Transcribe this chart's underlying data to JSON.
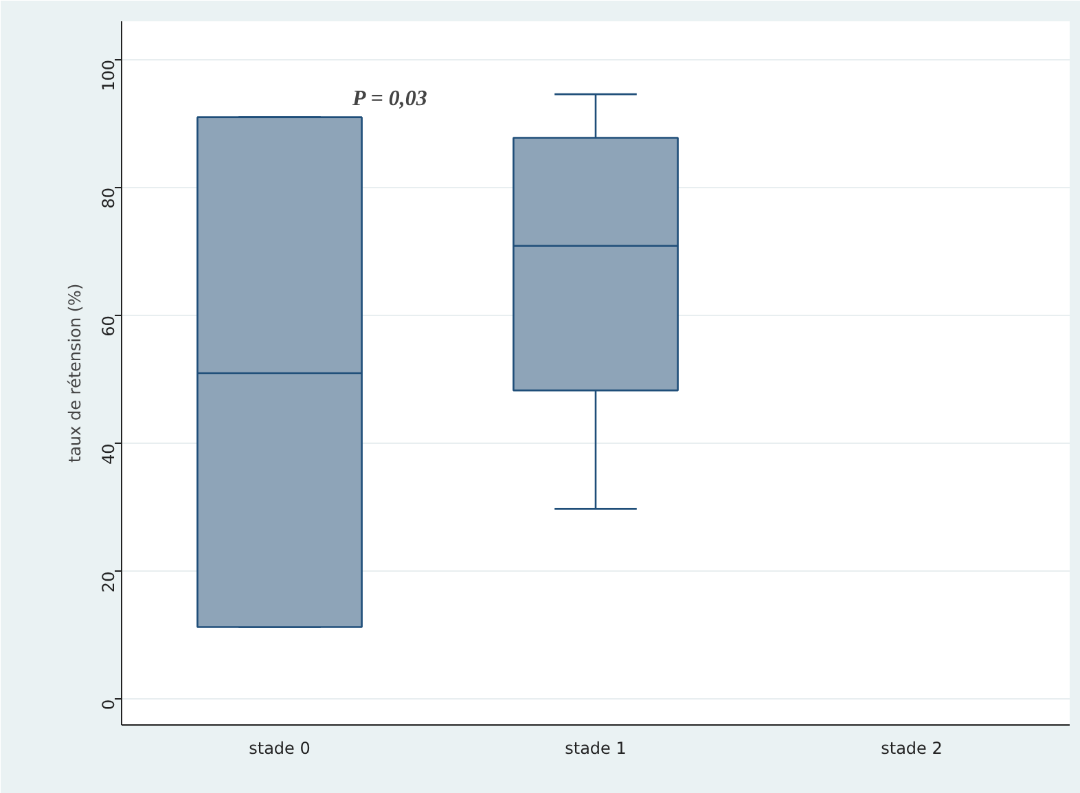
{
  "chart_data": {
    "type": "box",
    "categories": [
      "stade 0",
      "stade 1",
      "stade 2"
    ],
    "boxes": [
      {
        "low": 11.3,
        "q1": 11.3,
        "median": 51,
        "q3": 91,
        "high": 91
      },
      {
        "low": 29.8,
        "q1": 48.3,
        "median": 70.9,
        "q3": 87.8,
        "high": 94.6
      },
      null
    ],
    "color": "#8ea4b8",
    "ylabel": "taux de rétension (%)",
    "ylim": [
      -4,
      106
    ],
    "yticks": [
      0,
      20,
      40,
      60,
      80,
      100
    ],
    "grid": "y",
    "annotations": [
      "P = 0,03"
    ]
  }
}
